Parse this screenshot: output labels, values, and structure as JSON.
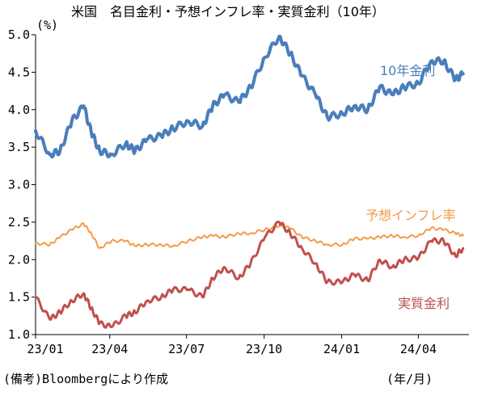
{
  "chart_data": {
    "type": "line",
    "title": "米国　名目金利・予想インフレ率・実質金利（10年）",
    "ylabel": "(%)",
    "xlabel": "(年/月)",
    "note": "(備考)Bloombergにより作成",
    "ylim": [
      1.0,
      5.0
    ],
    "yticks": [
      "1.0",
      "1.5",
      "2.0",
      "2.5",
      "3.0",
      "3.5",
      "4.0",
      "4.5",
      "5.0"
    ],
    "xticks": [
      "23/01",
      "23/04",
      "23/07",
      "23/10",
      "24/01",
      "24/04"
    ],
    "grid": false,
    "colors": {
      "nominal": "#4a7ebb",
      "inflation": "#f39a46",
      "real": "#c0504d"
    },
    "series": [
      {
        "name": "10年金利",
        "x": [
          "2023-01-03",
          "2023-01-20",
          "2023-02-01",
          "2023-02-15",
          "2023-03-01",
          "2023-03-10",
          "2023-03-20",
          "2023-04-03",
          "2023-04-20",
          "2023-05-01",
          "2023-05-15",
          "2023-06-01",
          "2023-06-15",
          "2023-07-03",
          "2023-07-20",
          "2023-08-01",
          "2023-08-15",
          "2023-09-01",
          "2023-09-15",
          "2023-10-02",
          "2023-10-19",
          "2023-11-01",
          "2023-11-15",
          "2023-12-01",
          "2023-12-15",
          "2024-01-02",
          "2024-01-16",
          "2024-02-01",
          "2024-02-15",
          "2024-03-01",
          "2024-03-15",
          "2024-04-01",
          "2024-04-16",
          "2024-05-01",
          "2024-05-15",
          "2024-05-24"
        ],
        "values": [
          3.72,
          3.4,
          3.45,
          3.85,
          4.05,
          3.7,
          3.45,
          3.4,
          3.55,
          3.45,
          3.6,
          3.65,
          3.75,
          3.85,
          3.78,
          4.05,
          4.2,
          4.1,
          4.3,
          4.7,
          4.98,
          4.75,
          4.45,
          4.2,
          3.9,
          3.95,
          4.05,
          4.0,
          4.3,
          4.2,
          4.3,
          4.35,
          4.65,
          4.65,
          4.4,
          4.48
        ]
      },
      {
        "name": "予想インフレ率",
        "x": [
          "2023-01-03",
          "2023-01-20",
          "2023-02-01",
          "2023-02-15",
          "2023-03-01",
          "2023-03-10",
          "2023-03-20",
          "2023-04-03",
          "2023-04-20",
          "2023-05-01",
          "2023-05-15",
          "2023-06-01",
          "2023-06-15",
          "2023-07-03",
          "2023-07-20",
          "2023-08-01",
          "2023-08-15",
          "2023-09-01",
          "2023-09-15",
          "2023-10-02",
          "2023-10-19",
          "2023-11-01",
          "2023-11-15",
          "2023-12-01",
          "2023-12-15",
          "2024-01-02",
          "2024-01-16",
          "2024-02-01",
          "2024-02-15",
          "2024-03-01",
          "2024-03-15",
          "2024-04-01",
          "2024-04-16",
          "2024-05-01",
          "2024-05-15",
          "2024-05-24"
        ],
        "values": [
          2.22,
          2.2,
          2.3,
          2.4,
          2.48,
          2.35,
          2.15,
          2.25,
          2.25,
          2.18,
          2.2,
          2.2,
          2.18,
          2.25,
          2.3,
          2.32,
          2.3,
          2.35,
          2.35,
          2.4,
          2.45,
          2.42,
          2.3,
          2.25,
          2.2,
          2.2,
          2.28,
          2.28,
          2.3,
          2.32,
          2.3,
          2.32,
          2.42,
          2.4,
          2.35,
          2.32
        ]
      },
      {
        "name": "実質金利",
        "x": [
          "2023-01-03",
          "2023-01-20",
          "2023-02-01",
          "2023-02-15",
          "2023-03-01",
          "2023-03-10",
          "2023-03-20",
          "2023-04-03",
          "2023-04-20",
          "2023-05-01",
          "2023-05-15",
          "2023-06-01",
          "2023-06-15",
          "2023-07-03",
          "2023-07-20",
          "2023-08-01",
          "2023-08-15",
          "2023-09-01",
          "2023-09-15",
          "2023-10-02",
          "2023-10-19",
          "2023-11-01",
          "2023-11-15",
          "2023-12-01",
          "2023-12-15",
          "2024-01-02",
          "2024-01-16",
          "2024-02-01",
          "2024-02-15",
          "2024-03-01",
          "2024-03-15",
          "2024-04-01",
          "2024-04-16",
          "2024-05-01",
          "2024-05-15",
          "2024-05-24"
        ],
        "values": [
          1.5,
          1.2,
          1.3,
          1.45,
          1.55,
          1.35,
          1.15,
          1.1,
          1.25,
          1.3,
          1.45,
          1.5,
          1.6,
          1.6,
          1.5,
          1.75,
          1.9,
          1.75,
          1.95,
          2.3,
          2.5,
          2.35,
          2.15,
          1.95,
          1.7,
          1.7,
          1.8,
          1.72,
          2.0,
          1.9,
          2.0,
          2.02,
          2.25,
          2.25,
          2.05,
          2.15
        ]
      }
    ]
  }
}
